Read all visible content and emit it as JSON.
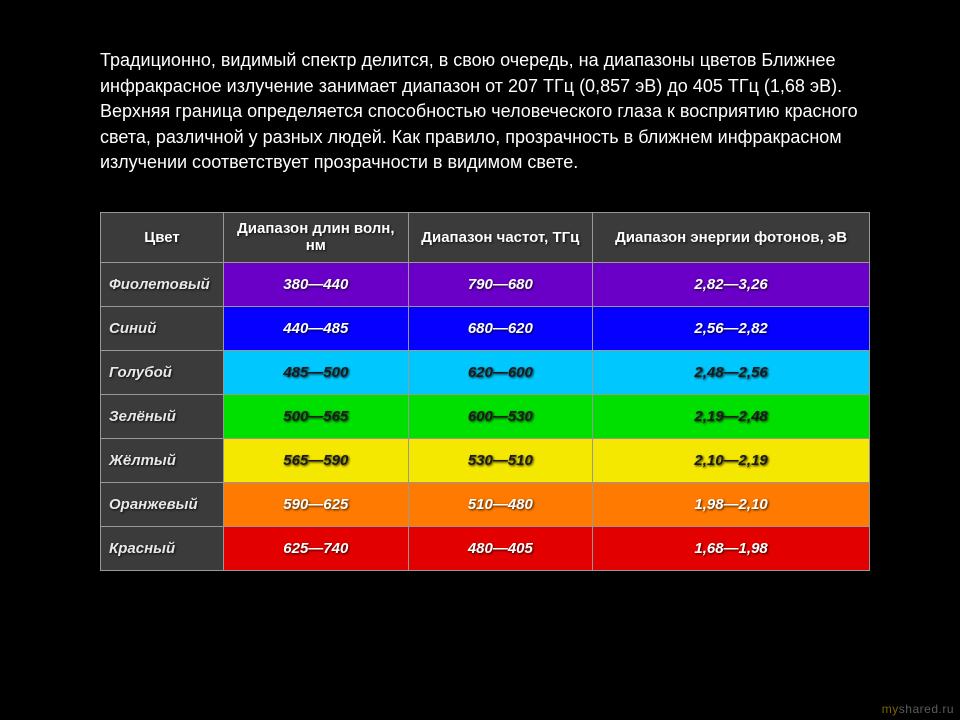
{
  "intro_text": "Традиционно, видимый спектр делится, в свою очередь, на диапазоны цветов\n Ближнее инфракрасное излучение занимает диапазон от 207 ТГц (0,857 эВ) до 405 ТГц (1,68 эВ). Верхняя граница определяется способностью человеческого глаза к восприятию красного света, различной у разных людей. Как правило, прозрачность в ближнем инфракрасном излучении соответствует прозрачности в видимом свете.",
  "table": {
    "type": "table",
    "header_bg": "#3b3b3b",
    "name_col_bg": "#3b3b3b",
    "border_color": "#989898",
    "text_shadow": "1px 1px 2px rgba(0,0,0,0.8)",
    "columns": [
      {
        "key": "name",
        "label": "Цвет"
      },
      {
        "key": "wave",
        "label": "Диапазон длин волн, нм"
      },
      {
        "key": "freq",
        "label": "Диапазон частот, ТГц"
      },
      {
        "key": "energy",
        "label": "Диапазон энергии фотонов, эВ"
      }
    ],
    "rows": [
      {
        "name": "Фиолетовый",
        "wave": "380—440",
        "freq": "790—680",
        "energy": "2,82—3,26",
        "bg": "#6a00c8",
        "fg": "#ffffff"
      },
      {
        "name": "Синий",
        "wave": "440—485",
        "freq": "680—620",
        "energy": "2,56—2,82",
        "bg": "#0500ff",
        "fg": "#ffffff"
      },
      {
        "name": "Голубой",
        "wave": "485—500",
        "freq": "620—600",
        "energy": "2,48—2,56",
        "bg": "#00c8ff",
        "fg": "#1a1a1a"
      },
      {
        "name": "Зелёный",
        "wave": "500—565",
        "freq": "600—530",
        "energy": "2,19—2,48",
        "bg": "#00e000",
        "fg": "#1a1a1a"
      },
      {
        "name": "Жёлтый",
        "wave": "565—590",
        "freq": "530—510",
        "energy": "2,10—2,19",
        "bg": "#f5e800",
        "fg": "#1a1a1a"
      },
      {
        "name": "Оранжевый",
        "wave": "590—625",
        "freq": "510—480",
        "energy": "1,98—2,10",
        "bg": "#ff7a00",
        "fg": "#ffffff"
      },
      {
        "name": "Красный",
        "wave": "625—740",
        "freq": "480—405",
        "energy": "1,68—1,98",
        "bg": "#e30000",
        "fg": "#ffffff"
      }
    ]
  },
  "watermark": {
    "prefix": "my",
    "suffix": "shared.ru"
  }
}
